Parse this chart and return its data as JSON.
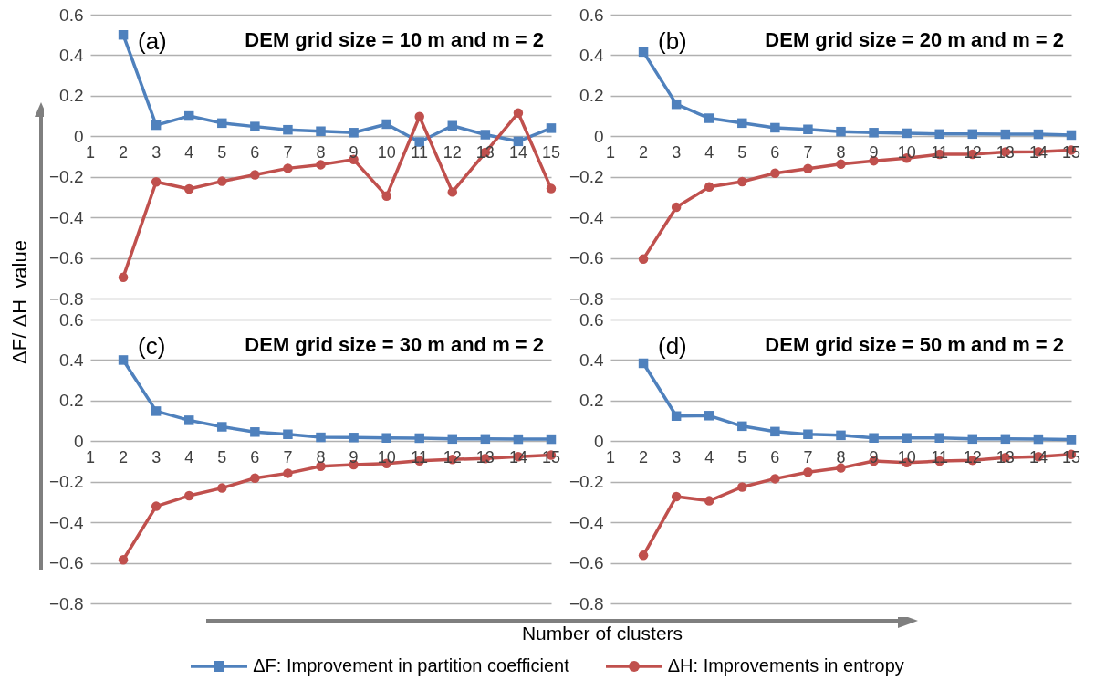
{
  "chart_data": [
    {
      "type": "line",
      "title": "DEM grid size = 10 m and m = 2",
      "annotations": [
        "(a)"
      ],
      "ylabel": "ΔF/ ΔH  value",
      "legend": "bottom",
      "x": [
        2,
        3,
        4,
        5,
        6,
        7,
        8,
        9,
        10,
        11,
        12,
        13,
        14,
        15
      ],
      "xlim": [
        1,
        15
      ],
      "xticks": [
        1,
        2,
        3,
        4,
        5,
        6,
        7,
        8,
        9,
        10,
        11,
        12,
        13,
        14,
        15
      ],
      "ylim": [
        -0.8,
        0.6
      ],
      "yticks": [
        -0.8,
        -0.6,
        -0.4,
        -0.2,
        0,
        0.2,
        0.4,
        0.6
      ],
      "grid": "y",
      "series": [
        {
          "name": "ΔF: Improvement in partition coefficient",
          "color": "#4f81bd",
          "marker": "square",
          "values": [
            0.5,
            0.055,
            0.1,
            0.065,
            0.048,
            0.032,
            0.025,
            0.018,
            0.06,
            -0.028,
            0.052,
            0.008,
            -0.025,
            0.04
          ]
        },
        {
          "name": "ΔH: Improvements in entropy",
          "color": "#c0504d",
          "marker": "circle",
          "values": [
            -0.695,
            -0.225,
            -0.26,
            -0.222,
            -0.19,
            -0.158,
            -0.14,
            -0.115,
            -0.295,
            0.097,
            -0.275,
            -0.08,
            0.115,
            -0.258
          ]
        }
      ]
    },
    {
      "type": "line",
      "title": "DEM grid size = 20 m and m = 2",
      "annotations": [
        "(b)"
      ],
      "x": [
        2,
        3,
        4,
        5,
        6,
        7,
        8,
        9,
        10,
        11,
        12,
        13,
        14,
        15
      ],
      "xlim": [
        1,
        15
      ],
      "xticks": [
        1,
        2,
        3,
        4,
        5,
        6,
        7,
        8,
        9,
        10,
        11,
        12,
        13,
        14,
        15
      ],
      "ylim": [
        -0.8,
        0.6
      ],
      "yticks": [
        -0.8,
        -0.6,
        -0.4,
        -0.2,
        0,
        0.2,
        0.4,
        0.6
      ],
      "grid": "y",
      "series": [
        {
          "color": "#4f81bd",
          "marker": "square",
          "values": [
            0.416,
            0.158,
            0.089,
            0.065,
            0.042,
            0.034,
            0.023,
            0.018,
            0.015,
            0.011,
            0.011,
            0.01,
            0.01,
            0.006
          ]
        },
        {
          "color": "#c0504d",
          "marker": "circle",
          "values": [
            -0.605,
            -0.35,
            -0.25,
            -0.224,
            -0.182,
            -0.16,
            -0.137,
            -0.121,
            -0.108,
            -0.089,
            -0.089,
            -0.077,
            -0.076,
            -0.068
          ]
        }
      ]
    },
    {
      "type": "line",
      "title": "DEM grid size = 30 m and m = 2",
      "annotations": [
        "(c)"
      ],
      "xlabel": "Number of clusters",
      "x": [
        2,
        3,
        4,
        5,
        6,
        7,
        8,
        9,
        10,
        11,
        12,
        13,
        14,
        15
      ],
      "xlim": [
        1,
        15
      ],
      "xticks": [
        1,
        2,
        3,
        4,
        5,
        6,
        7,
        8,
        9,
        10,
        11,
        12,
        13,
        14,
        15
      ],
      "ylim": [
        -0.8,
        0.6
      ],
      "yticks": [
        -0.8,
        -0.6,
        -0.4,
        -0.2,
        0,
        0.2,
        0.4,
        0.6
      ],
      "grid": "y",
      "series": [
        {
          "color": "#4f81bd",
          "marker": "square",
          "values": [
            0.4,
            0.148,
            0.103,
            0.071,
            0.045,
            0.034,
            0.019,
            0.018,
            0.016,
            0.015,
            0.011,
            0.011,
            0.01,
            0.01
          ]
        },
        {
          "color": "#c0504d",
          "marker": "circle",
          "values": [
            -0.585,
            -0.321,
            -0.269,
            -0.231,
            -0.182,
            -0.158,
            -0.124,
            -0.116,
            -0.11,
            -0.097,
            -0.09,
            -0.085,
            -0.076,
            -0.069
          ]
        }
      ]
    },
    {
      "type": "line",
      "title": "DEM grid size = 50 m and m = 2",
      "annotations": [
        "(d)"
      ],
      "x": [
        2,
        3,
        4,
        5,
        6,
        7,
        8,
        9,
        10,
        11,
        12,
        13,
        14,
        15
      ],
      "xlim": [
        1,
        15
      ],
      "xticks": [
        1,
        2,
        3,
        4,
        5,
        6,
        7,
        8,
        9,
        10,
        11,
        12,
        13,
        14,
        15
      ],
      "ylim": [
        -0.8,
        0.6
      ],
      "yticks": [
        -0.8,
        -0.6,
        -0.4,
        -0.2,
        0,
        0.2,
        0.4,
        0.6
      ],
      "grid": "y",
      "series": [
        {
          "color": "#4f81bd",
          "marker": "square",
          "values": [
            0.384,
            0.124,
            0.126,
            0.074,
            0.047,
            0.034,
            0.029,
            0.016,
            0.016,
            0.016,
            0.011,
            0.011,
            0.01,
            0.008
          ]
        },
        {
          "color": "#c0504d",
          "marker": "circle",
          "values": [
            -0.563,
            -0.273,
            -0.294,
            -0.226,
            -0.185,
            -0.153,
            -0.132,
            -0.098,
            -0.106,
            -0.098,
            -0.094,
            -0.081,
            -0.076,
            -0.065
          ]
        }
      ]
    }
  ]
}
